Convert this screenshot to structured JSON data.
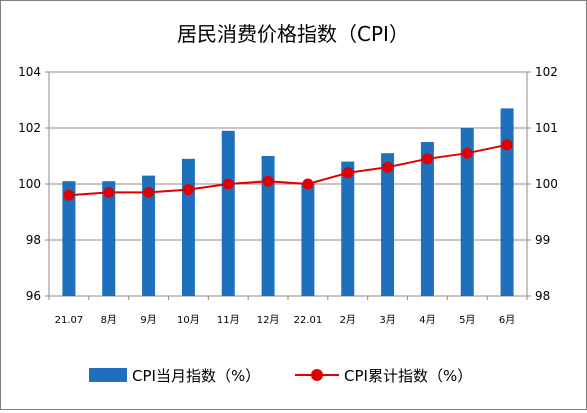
{
  "chart_data": {
    "type": "bar+line",
    "title": "居民消费价格指数（CPI）",
    "categories": [
      "21.07",
      "8月",
      "9月",
      "10月",
      "11月",
      "12月",
      "22.01",
      "2月",
      "3月",
      "4月",
      "5月",
      "6月"
    ],
    "series": [
      {
        "name": "CPI当月指数（%）",
        "type": "bar",
        "axis": "left",
        "color": "#1f6fbf",
        "values": [
          100.1,
          100.1,
          100.3,
          100.9,
          101.9,
          101.0,
          100.0,
          100.8,
          101.1,
          101.5,
          102.0,
          102.7
        ]
      },
      {
        "name": "CPI累计指数（%）",
        "type": "line",
        "axis": "right",
        "color": "#e00000",
        "values": [
          99.8,
          99.85,
          99.85,
          99.9,
          100.0,
          100.05,
          100.0,
          100.2,
          100.3,
          100.45,
          100.55,
          100.7
        ]
      }
    ],
    "y_left": {
      "min": 96,
      "max": 104,
      "ticks": [
        "96",
        "98",
        "100",
        "102",
        "104"
      ]
    },
    "y_right": {
      "min": 98,
      "max": 102,
      "ticks": [
        "98",
        "99",
        "100",
        "101",
        "102"
      ]
    },
    "grid": "horizontal",
    "legend_position": "bottom"
  }
}
